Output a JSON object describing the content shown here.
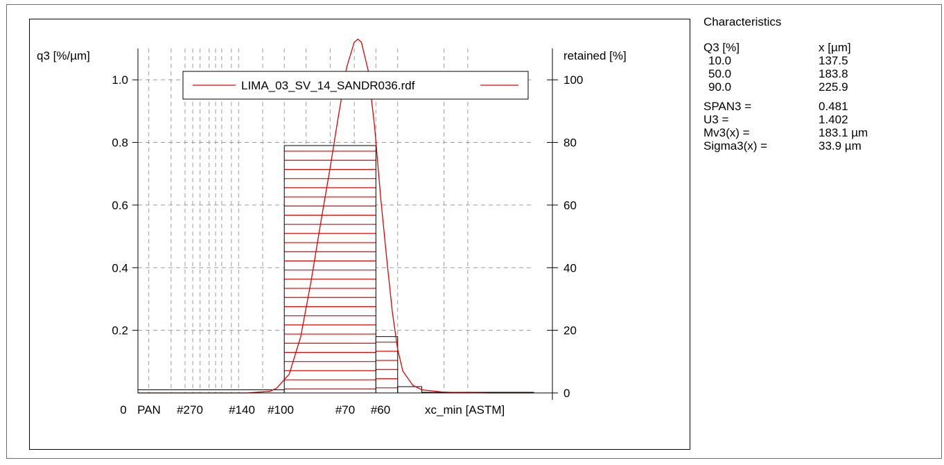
{
  "characteristics": {
    "title": "Characteristics",
    "header": {
      "col1": "Q3 [%]",
      "col2": "x [µm]"
    },
    "rows": [
      {
        "q3": "10.0",
        "x": "137.5"
      },
      {
        "q3": "50.0",
        "x": "183.8"
      },
      {
        "q3": "90.0",
        "x": "225.9"
      }
    ],
    "stats": [
      {
        "label": "SPAN3 =",
        "value": "0.481"
      },
      {
        "label": "U3 =",
        "value": "1.402"
      },
      {
        "label": "Mv3(x) =",
        "value": "183.1 µm"
      },
      {
        "label": "Sigma3(x) =",
        "value": "33.9 µm"
      }
    ]
  },
  "chart_data": {
    "type": "bar",
    "ylabel": "q3 [%/µm]",
    "y2label": "retained [%]",
    "xlabel": "xc_min [ASTM]",
    "x_tick_labels": [
      "0",
      "PAN",
      "#270",
      "#140",
      "#100",
      "#70",
      "#60"
    ],
    "y_ticks": [
      "0.2",
      "0.4",
      "0.6",
      "0.8",
      "1.0"
    ],
    "y2_ticks": [
      "0",
      "20",
      "40",
      "60",
      "80",
      "100"
    ],
    "ylim": [
      0,
      1.1
    ],
    "y2lim": [
      0,
      110
    ],
    "x_scale": "log",
    "x_range_um": [
      35,
      700
    ],
    "legend": {
      "label": "LIMA_03_SV_14_SANDR036.rdf",
      "position": "top"
    },
    "grid": true,
    "series_color": "#e00000",
    "bars": [
      {
        "from_um": 35,
        "to_um": 106,
        "retained_pct": 1.0,
        "hatched": false
      },
      {
        "from_um": 106,
        "to_um": 212,
        "retained_pct": 79.0,
        "hatched": true
      },
      {
        "from_um": 212,
        "to_um": 250,
        "retained_pct": 18.0,
        "hatched": true
      },
      {
        "from_um": 250,
        "to_um": 300,
        "retained_pct": 2.0,
        "hatched": false
      },
      {
        "from_um": 300,
        "to_um": 700,
        "retained_pct": 0.2,
        "hatched": false
      }
    ],
    "density_curve": {
      "x_um": [
        35,
        80,
        95,
        100,
        110,
        120,
        130,
        140,
        150,
        160,
        170,
        180,
        185,
        190,
        200,
        210,
        220,
        230,
        240,
        250,
        260,
        280,
        300,
        350,
        400,
        500,
        700
      ],
      "q3": [
        0,
        0,
        0.005,
        0.015,
        0.06,
        0.18,
        0.36,
        0.55,
        0.72,
        0.89,
        1.04,
        1.12,
        1.13,
        1.12,
        1.03,
        0.85,
        0.62,
        0.43,
        0.26,
        0.14,
        0.07,
        0.025,
        0.01,
        0.003,
        0.001,
        0,
        0
      ]
    }
  }
}
